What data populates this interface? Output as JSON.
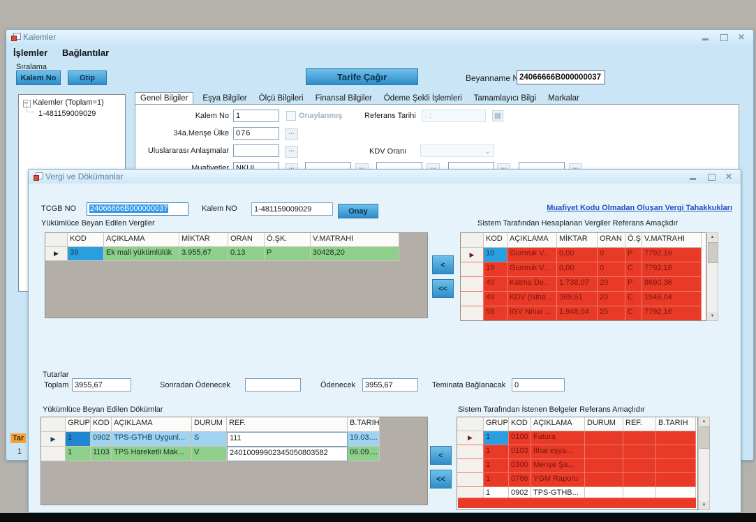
{
  "icons": {
    "row_selector": "▶",
    "browse_label": "...",
    "scroll_up": "▲",
    "scroll_down": "▼",
    "combo_chevron": "⌄",
    "calendar": "▦",
    "close_glyph": "✕"
  },
  "colors": {
    "accent_blue": "#2e8dc8",
    "row_green": "#8ed08b",
    "row_red": "#e93a28",
    "selected_cell_blue": "#1f86cf",
    "link_blue": "#2050c0",
    "selection_highlight": "#3399e8"
  },
  "main_window": {
    "title": "Kalemler",
    "menu": [
      "İşlemler",
      "Bağlantılar"
    ],
    "sort_group_label": "Sıralama",
    "sort_buttons": {
      "kalem_no": "Kalem No",
      "gtip": "Gtip"
    },
    "tree": {
      "root": "Kalemler (Toplam=1)",
      "child": "1-481159009029"
    },
    "tarife_button": "Tarife Çağır",
    "beyanname": {
      "label": "Beyanname No",
      "value": "24066666B000000037"
    },
    "tabs": [
      "Genel Bilgiler",
      "Eşya Bilgiler",
      "Ölçü Bilgileri",
      "Finansal Bilgiler",
      "Ödeme Şekli İşlemleri",
      "Tamamlayıcı Bilgi",
      "Markalar"
    ],
    "fields": {
      "kalem_no": {
        "label": "Kalem No",
        "value": "1"
      },
      "onaylanmis_label": "Onaylanmış",
      "referans_tarihi": {
        "label": "Referans Tarihi",
        "value": ".  :"
      },
      "mense_ulke": {
        "label": "34a.Menşe Ülke",
        "value": "076"
      },
      "uluslararasi": {
        "label": "Uluslararası Anlaşmalar",
        "value": ""
      },
      "kdv_orani_label": "KDV Oranı",
      "muafiyetler": {
        "label": "Muafiyetler",
        "value": "NKUL"
      }
    },
    "behind": {
      "partial_orange_label": "Tar",
      "partial_value": "1"
    }
  },
  "dialog": {
    "title": "Vergi ve Dökümanlar",
    "tcgb": {
      "label": "TCGB NO",
      "value": "24066666B000000037"
    },
    "kalem": {
      "label": "Kalem NO",
      "value": "1-481159009029"
    },
    "onay_button": "Onay",
    "link": "Muafiyet Kodu Olmadan Oluşan Vergi Tahakkukları",
    "transfer": {
      "move_one": "<",
      "move_all": "<<"
    },
    "totals": {
      "group_label": "Tutarlar",
      "toplam": {
        "label": "Toplam",
        "value": "3955,67"
      },
      "sonradan": {
        "label": "Sonradan Ödenecek",
        "value": ""
      },
      "odenecek": {
        "label": "Ödenecek",
        "value": "3955,67"
      },
      "teminat": {
        "label": "Teminata Bağlanacak",
        "value": "0"
      }
    },
    "declared_taxes": {
      "title": "Yükümlüce Beyan Edilen Vergiler",
      "headers": [
        "KOD",
        "AÇIKLAMA",
        "MİKTAR",
        "ORAN",
        "Ö.ŞK.",
        "V.MATRAHI"
      ],
      "rows": [
        {
          "sel": true,
          "cls": "green",
          "cellCls": [
            "cblue"
          ],
          "cells": [
            "39",
            "Ek mali yükümlülük",
            "3.955,67",
            "0.13",
            "P",
            "30428,20"
          ]
        }
      ]
    },
    "system_taxes": {
      "title": "Sistem Tarafından Hesaplanan Vergiler  Referans Amaçlıdır",
      "headers": [
        "KOD",
        "AÇIKLAMA",
        "MİKTAR",
        "ORAN",
        "Ö.Ş",
        "V.MATRAHI"
      ],
      "rows": [
        {
          "sel": true,
          "cls": "red",
          "cellCls": [
            "cblue"
          ],
          "cells": [
            "10",
            "Gumruk V...",
            "0,00",
            "0",
            "P",
            "7792,16"
          ]
        },
        {
          "cls": "red",
          "cells": [
            "19",
            "Gumruk V...",
            "0,00",
            "0",
            "C",
            "7792,16"
          ]
        },
        {
          "cls": "red",
          "cells": [
            "40",
            "Katma De...",
            "1.738,07",
            "20",
            "P",
            "8690,36"
          ]
        },
        {
          "cls": "red",
          "cells": [
            "49",
            "KDV (Niha...",
            "389,61",
            "20",
            "C",
            "1948,04"
          ]
        },
        {
          "cls": "red",
          "cells": [
            "58",
            "İGV Nihai ...",
            "1.948,04",
            "25",
            "C",
            "7792,16"
          ]
        }
      ]
    },
    "declared_docs": {
      "title": "Yükümlüce Beyan Edilen Dökümlar",
      "headers": [
        "GRUP",
        "KOD",
        "AÇIKLAMA",
        "DURUM",
        "REF.",
        "B.TARIH"
      ],
      "rows": [
        {
          "sel": true,
          "cls": "selblue",
          "cellCls": [
            "cdkblue",
            "",
            "",
            "",
            "cinput",
            ""
          ],
          "cells": [
            "1",
            "0902",
            "TPS-GTHB Uygunl...",
            "S",
            "111",
            "19.03...."
          ]
        },
        {
          "cls": "green",
          "cellCls": [
            "",
            "",
            "",
            "",
            "cinput",
            ""
          ],
          "cells": [
            "1",
            "1103",
            "TPS Hareketli Mak...",
            "V",
            "24010099902345050803582",
            "06.09...."
          ]
        }
      ]
    },
    "system_docs": {
      "title": "Sistem Tarafından İstenen Belgeler Referans Amaçlıdır",
      "headers": [
        "GRUP",
        "KOD",
        "AÇIKLAMA",
        "DURUM",
        "REF.",
        "B.TARIH"
      ],
      "rows": [
        {
          "sel": true,
          "cls": "red",
          "cellCls": [
            "cblue"
          ],
          "cells": [
            "1",
            "0100",
            "Fatura",
            "",
            "",
            ""
          ]
        },
        {
          "cls": "red",
          "cells": [
            "1",
            "0103",
            "İthal eşya...",
            "",
            "",
            ""
          ]
        },
        {
          "cls": "red",
          "cells": [
            "1",
            "0300",
            "Menşe Şa...",
            "",
            "",
            ""
          ]
        },
        {
          "cls": "red",
          "cells": [
            "1",
            "0786",
            "YGM Raporu",
            "",
            "",
            ""
          ]
        },
        {
          "cls": "white-row",
          "cells": [
            "1",
            "0902",
            "TPS-GTHB...",
            "",
            "",
            ""
          ]
        }
      ]
    }
  }
}
